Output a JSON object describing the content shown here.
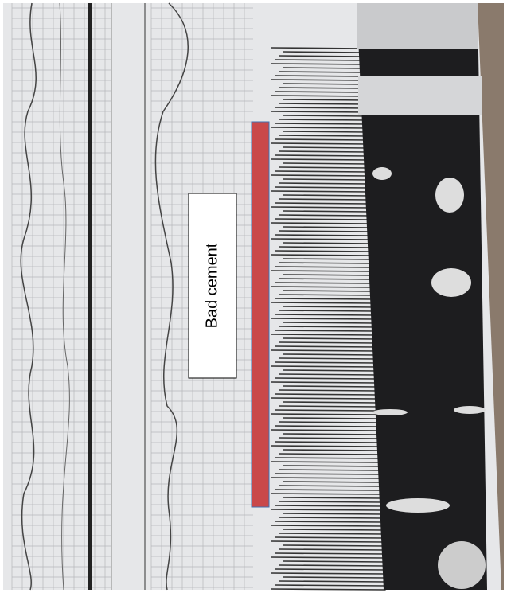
{
  "annotation": {
    "label": "Bad cement"
  }
}
